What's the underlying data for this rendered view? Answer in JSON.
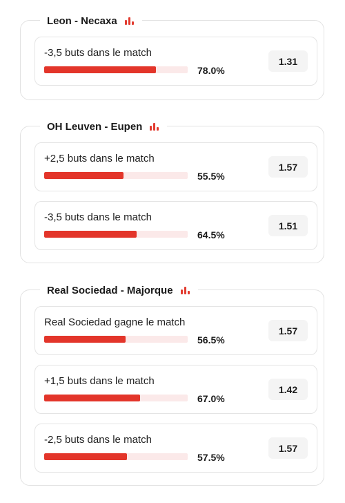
{
  "groups": [
    {
      "title": "Leon - Necaxa",
      "bets": [
        {
          "label": "-3,5 buts dans le match",
          "percent_text": "78.0%",
          "percent": 78.0,
          "odds": "1.31"
        }
      ]
    },
    {
      "title": "OH Leuven - Eupen",
      "bets": [
        {
          "label": "+2,5 buts dans le match",
          "percent_text": "55.5%",
          "percent": 55.5,
          "odds": "1.57"
        },
        {
          "label": "-3,5 buts dans le match",
          "percent_text": "64.5%",
          "percent": 64.5,
          "odds": "1.51"
        }
      ]
    },
    {
      "title": "Real Sociedad - Majorque",
      "bets": [
        {
          "label": "Real Sociedad gagne le match",
          "percent_text": "56.5%",
          "percent": 56.5,
          "odds": "1.57"
        },
        {
          "label": "+1,5 buts dans le match",
          "percent_text": "67.0%",
          "percent": 67.0,
          "odds": "1.42"
        },
        {
          "label": "-2,5 buts dans le match",
          "percent_text": "57.5%",
          "percent": 57.5,
          "odds": "1.57"
        }
      ]
    }
  ],
  "colors": {
    "accent": "#e3352a",
    "bar_track": "#fbe9e9",
    "odds_bg": "#f4f4f4",
    "border": "#e2e2e2"
  },
  "icons": {
    "header_icon": "bar-chart-icon"
  }
}
